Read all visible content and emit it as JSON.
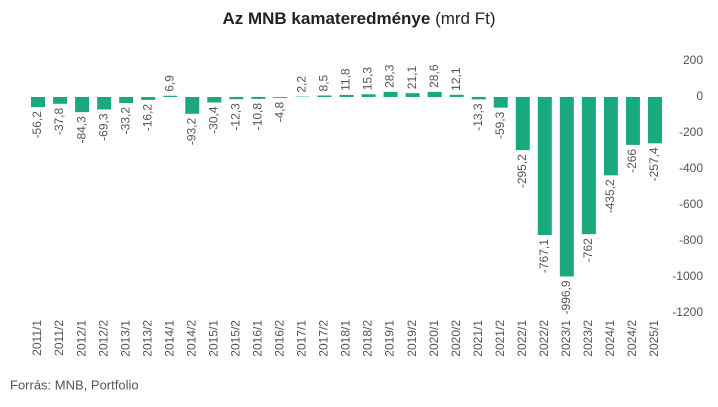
{
  "chart_data": {
    "type": "bar",
    "title": "Az MNB kamateredménye",
    "title_unit": "(mrd Ft)",
    "source": "Forrás: MNB, Portfolio",
    "categories": [
      "2011/1",
      "2011/2",
      "2012/1",
      "2012/2",
      "2013/1",
      "2013/2",
      "2014/1",
      "2014/2",
      "2015/1",
      "2015/2",
      "2016/1",
      "2016/2",
      "2017/1",
      "2017/2",
      "2018/1",
      "2018/2",
      "2019/1",
      "2019/2",
      "2020/1",
      "2020/2",
      "2021/1",
      "2021/2",
      "2022/1",
      "2022/2",
      "2023/1",
      "2023/2",
      "2024/1",
      "2024/2",
      "2025/1"
    ],
    "values": [
      -56.2,
      -37.8,
      -84.3,
      -69.3,
      -33.2,
      -16.2,
      6.9,
      -93.2,
      -30.4,
      -12.3,
      -10.8,
      -4.8,
      2.2,
      8.5,
      11.8,
      15.3,
      28.3,
      21.1,
      28.6,
      12.1,
      -13.3,
      -59.3,
      -295.2,
      -767.1,
      -996.9,
      -762,
      -435.2,
      -266,
      -257.4
    ],
    "value_labels": [
      "-56,2",
      "-37,8",
      "-84,3",
      "-69,3",
      "-33,2",
      "-16,2",
      "6,9",
      "-93,2",
      "-30,4",
      "-12,3",
      "-10,8",
      "-4,8",
      "2,2",
      "8,5",
      "11,8",
      "15,3",
      "28,3",
      "21,1",
      "28,6",
      "12,1",
      "-13,3",
      "-59,3",
      "-295,2",
      "-767,1",
      "-996,9",
      "-762",
      "-435,2",
      "-266",
      "-257,4"
    ],
    "color": "#1aa97f",
    "ylim": [
      -1200,
      200
    ],
    "yticks": [
      200,
      0,
      -200,
      -400,
      -600,
      -800,
      -1000,
      -1200
    ],
    "grid": false
  }
}
